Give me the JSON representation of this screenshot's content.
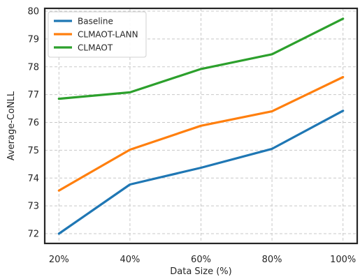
{
  "chart_data": {
    "type": "line",
    "xlabel": "Data Size (%)",
    "ylabel": "Average-CoNLL",
    "categories": [
      "20%",
      "40%",
      "60%",
      "80%",
      "100%"
    ],
    "x": [
      20,
      40,
      60,
      80,
      100
    ],
    "xlim": [
      16,
      104
    ],
    "ylim": [
      71.65,
      80.1
    ],
    "yticks": [
      72,
      73,
      74,
      75,
      76,
      77,
      78,
      79,
      80
    ],
    "grid": true,
    "grid_style": "dashed",
    "legend": "top-left",
    "series": [
      {
        "name": "Baseline",
        "color": "#1f77b4",
        "values": [
          72.0,
          73.77,
          74.37,
          75.05,
          76.42
        ]
      },
      {
        "name": "CLMAOT-LANN",
        "color": "#ff7f0e",
        "values": [
          73.55,
          75.02,
          75.88,
          76.4,
          77.63
        ]
      },
      {
        "name": "CLMAOT",
        "color": "#2ca02c",
        "values": [
          76.85,
          77.08,
          77.92,
          78.45,
          79.73
        ]
      }
    ]
  }
}
